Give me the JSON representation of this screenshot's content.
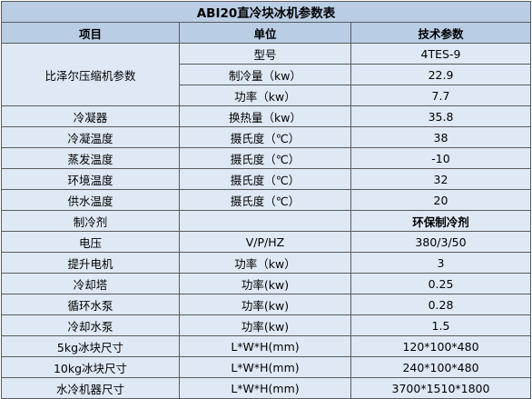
{
  "title": "ABI20直冷块冰机参数表",
  "headers": [
    "项目",
    "单位",
    "技术参数"
  ],
  "compressor_group": {
    "label": "比泽尔压缩机参数",
    "rows": [
      {
        "unit": "型号",
        "value": "4TES-9"
      },
      {
        "unit": "制冷量（kw）",
        "value": "22.9"
      },
      {
        "unit": "功率（kw）",
        "value": "7.7"
      }
    ]
  },
  "rows": [
    {
      "item": "冷凝器",
      "unit": "换热量（kw）",
      "value": "35.8"
    },
    {
      "item": "冷凝温度",
      "unit": "摄氏度（℃）",
      "value": "38"
    },
    {
      "item": "蒸发温度",
      "unit": "摄氏度（℃）",
      "value": "-10"
    },
    {
      "item": "环境温度",
      "unit": "摄氏度（℃）",
      "value": "32"
    },
    {
      "item": "供水温度",
      "unit": "摄氏度（℃）",
      "value": "20"
    },
    {
      "item": "制冷剂",
      "unit": "",
      "value": "环保制冷剂",
      "value_bold": true
    },
    {
      "item": "电压",
      "unit": "V/P/HZ",
      "value": "380/3/50"
    },
    {
      "item": "提升电机",
      "unit": "功率（kw）",
      "value": "3"
    },
    {
      "item": "冷却塔",
      "unit": "功率(kw)",
      "value": "0.25"
    },
    {
      "item": "循环水泵",
      "unit": "功率(kw)",
      "value": "0.28"
    },
    {
      "item": "冷却水泵",
      "unit": "功率(kw)",
      "value": "1.5"
    },
    {
      "item": "5kg冰块尺寸",
      "unit": "L*W*H(mm)",
      "value": "120*100*480"
    },
    {
      "item": "10kg冰块尺寸",
      "unit": "L*W*H(mm)",
      "value": "240*100*480"
    },
    {
      "item": "水冷机器尺寸",
      "unit": "L*W*H(mm)",
      "value": "3700*1510*1800"
    }
  ]
}
